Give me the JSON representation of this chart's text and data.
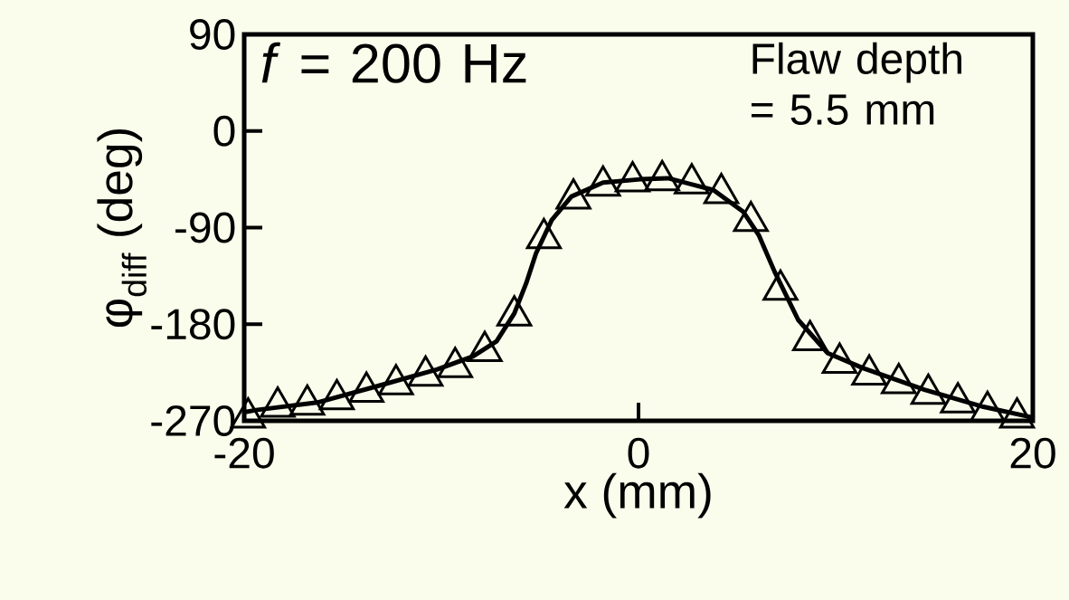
{
  "chart_data": {
    "type": "scatter",
    "xlabel": "x (mm)",
    "ylabel": "φ$_{diff}$ (deg)",
    "xlim": [
      -20,
      20
    ],
    "ylim": [
      -270,
      90
    ],
    "xticks": [
      -20,
      0,
      20
    ],
    "yticks": [
      -270,
      -180,
      -90,
      0,
      90
    ],
    "grid": false,
    "annotations": [
      "*f* = 200 Hz",
      "Flaw depth\n= 5.5 mm"
    ],
    "series": [
      {
        "color": "#000000",
        "marker": "triangle",
        "x": [
          -19.8,
          -18.3,
          -16.8,
          -15.3,
          -13.8,
          -12.3,
          -10.8,
          -9.3,
          -7.8,
          -6.3,
          -4.8,
          -3.3,
          -1.8,
          -0.3,
          1.2,
          2.7,
          4.2,
          5.7,
          7.2,
          8.7,
          10.2,
          11.7,
          13.2,
          14.7,
          16.2,
          17.7,
          19.2
        ],
        "values": [
          -267,
          -257,
          -255,
          -250,
          -243,
          -236,
          -228,
          -220,
          -205,
          -172,
          -100,
          -63,
          -51,
          -47,
          -46,
          -49,
          -58,
          -84,
          -148,
          -195,
          -216,
          -227,
          -235,
          -245,
          -253,
          -261,
          -267
        ]
      },
      {
        "type": "line",
        "color": "#000000",
        "marker": "none",
        "line_style": "solid",
        "x": [
          -20,
          -19.4,
          -16.3,
          -13.3,
          -10.2,
          -8.4,
          -7.2,
          -6.3,
          -5.7,
          -5.2,
          -4.4,
          -3.4,
          -1.8,
          0.1,
          1.5,
          3.8,
          5.3,
          6.1,
          6.9,
          8.1,
          9.6,
          11.4,
          14.5,
          17.5,
          20
        ],
        "values": [
          -262,
          -260,
          -253,
          -238,
          -222,
          -210,
          -196,
          -170,
          -142,
          -114,
          -83,
          -61,
          -48,
          -45,
          -44,
          -55,
          -75,
          -97,
          -131,
          -176,
          -207,
          -221,
          -241,
          -257,
          -267
        ]
      }
    ]
  }
}
